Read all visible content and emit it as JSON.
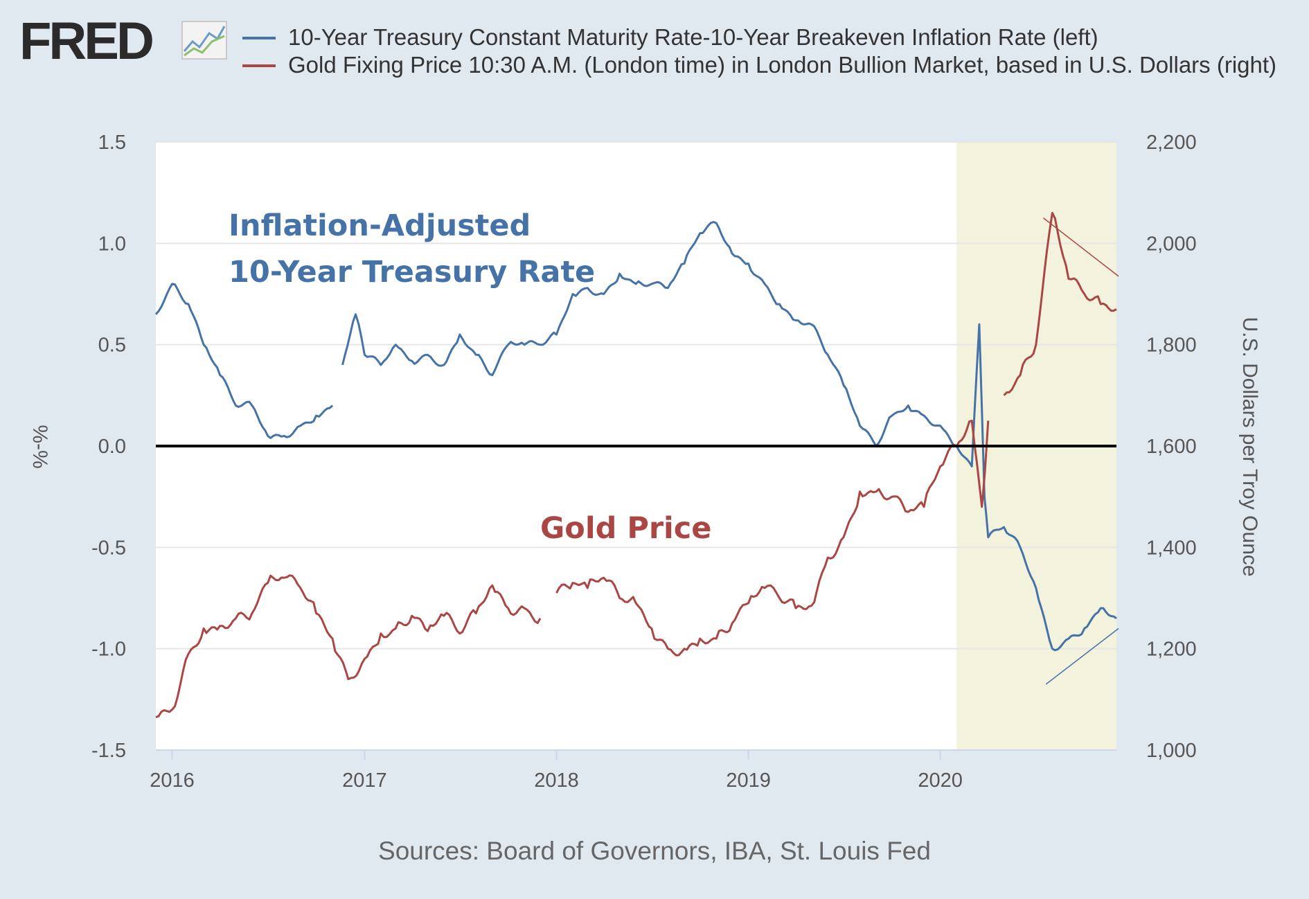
{
  "header": {
    "logo_text": "FRED",
    "logo_icon": "line-chart-icon"
  },
  "legend": [
    {
      "label": "10-Year Treasury Constant Maturity Rate-10-Year Breakeven Inflation Rate (left)",
      "color": "#4572a7"
    },
    {
      "label": "Gold Fixing Price 10:30 A.M. (London time) in London Bullion Market, based in U.S. Dollars (right)",
      "color": "#aa4643"
    }
  ],
  "source": "Sources: Board of Governors, IBA, St. Louis Fed",
  "chart_data": {
    "type": "line",
    "title": "",
    "x_ticks": [
      "2016",
      "2017",
      "2018",
      "2019",
      "2020"
    ],
    "x_range": [
      "2015-12-01",
      "2020-12-01"
    ],
    "y_left": {
      "label": "%-%",
      "range": [
        -1.5,
        1.5
      ],
      "ticks": [
        "1.5",
        "1.0",
        "0.5",
        "0.0",
        "-0.5",
        "-1.0",
        "-1.5"
      ]
    },
    "y_right": {
      "label": "U.S. Dollars per Troy Ounce",
      "range": [
        1000,
        2200
      ],
      "ticks": [
        "2,200",
        "2,000",
        "1,800",
        "1,600",
        "1,400",
        "1,200",
        "1,000"
      ]
    },
    "recession_shading": [
      "2020-02-01",
      "2020-12-01"
    ],
    "reference_line": {
      "y": 0.0,
      "color": "#000000"
    },
    "annotations": [
      {
        "text": "Inflation-Adjusted",
        "color": "#4572a7"
      },
      {
        "text": "10-Year Treasury Rate",
        "color": "#4572a7"
      },
      {
        "text": "Gold Price",
        "color": "#aa4643"
      }
    ],
    "series": [
      {
        "name": "10-Year Treasury Constant Maturity Rate-10-Year Breakeven Inflation Rate (left)",
        "axis": "left",
        "color": "#4572a7",
        "points": [
          [
            "2015-12-01",
            0.65
          ],
          [
            "2016-01-01",
            0.8
          ],
          [
            "2016-02-01",
            0.7
          ],
          [
            "2016-03-01",
            0.5
          ],
          [
            "2016-04-01",
            0.35
          ],
          [
            "2016-05-01",
            0.2
          ],
          [
            "2016-06-01",
            0.2
          ],
          [
            "2016-07-01",
            0.05
          ],
          [
            "2016-08-01",
            0.05
          ],
          [
            "2016-09-01",
            0.1
          ],
          [
            "2016-10-01",
            0.15
          ],
          [
            "2016-11-01",
            0.2
          ],
          [
            null,
            null
          ],
          [
            "2016-11-20",
            0.4
          ],
          [
            "2016-12-15",
            0.65
          ],
          [
            "2017-01-01",
            0.45
          ],
          [
            "2017-02-01",
            0.4
          ],
          [
            "2017-03-01",
            0.5
          ],
          [
            "2017-04-01",
            0.42
          ],
          [
            "2017-05-01",
            0.45
          ],
          [
            "2017-06-01",
            0.4
          ],
          [
            "2017-07-01",
            0.55
          ],
          [
            "2017-08-01",
            0.45
          ],
          [
            "2017-09-01",
            0.35
          ],
          [
            "2017-10-01",
            0.5
          ],
          [
            "2017-11-01",
            0.5
          ],
          [
            "2017-12-01",
            0.5
          ],
          [
            "2018-01-01",
            0.55
          ],
          [
            "2018-02-01",
            0.75
          ],
          [
            "2018-03-01",
            0.78
          ],
          [
            "2018-04-01",
            0.75
          ],
          [
            "2018-05-01",
            0.85
          ],
          [
            "2018-06-01",
            0.8
          ],
          [
            "2018-07-01",
            0.8
          ],
          [
            "2018-08-01",
            0.78
          ],
          [
            "2018-09-01",
            0.9
          ],
          [
            "2018-10-01",
            1.05
          ],
          [
            "2018-11-01",
            1.1
          ],
          [
            "2018-12-01",
            0.95
          ],
          [
            "2019-01-01",
            0.9
          ],
          [
            "2019-02-01",
            0.8
          ],
          [
            "2019-03-01",
            0.7
          ],
          [
            "2019-04-01",
            0.62
          ],
          [
            "2019-05-01",
            0.6
          ],
          [
            "2019-06-01",
            0.45
          ],
          [
            "2019-07-01",
            0.3
          ],
          [
            "2019-08-01",
            0.1
          ],
          [
            "2019-09-01",
            0.0
          ],
          [
            "2019-10-01",
            0.15
          ],
          [
            "2019-11-01",
            0.2
          ],
          [
            "2019-12-01",
            0.15
          ],
          [
            "2020-01-01",
            0.1
          ],
          [
            "2020-02-01",
            0.0
          ],
          [
            "2020-03-01",
            -0.1
          ],
          [
            "2020-03-15",
            0.6
          ],
          [
            "2020-03-25",
            -0.25
          ],
          [
            "2020-04-01",
            -0.45
          ],
          [
            "2020-05-01",
            -0.4
          ],
          [
            "2020-06-01",
            -0.5
          ],
          [
            "2020-07-01",
            -0.7
          ],
          [
            "2020-08-01",
            -1.0
          ],
          [
            "2020-09-01",
            -0.95
          ],
          [
            "2020-10-01",
            -0.9
          ],
          [
            "2020-11-01",
            -0.8
          ],
          [
            "2020-12-01",
            -0.85
          ]
        ]
      },
      {
        "name": "Gold Fixing Price 10:30 A.M. (London time) in London Bullion Market, based in U.S. Dollars (right)",
        "axis": "right",
        "color": "#aa4643",
        "points": [
          [
            "2015-12-01",
            1065
          ],
          [
            "2016-01-01",
            1080
          ],
          [
            "2016-02-01",
            1190
          ],
          [
            "2016-03-01",
            1240
          ],
          [
            "2016-04-01",
            1245
          ],
          [
            "2016-05-01",
            1260
          ],
          [
            "2016-06-01",
            1270
          ],
          [
            "2016-07-01",
            1330
          ],
          [
            "2016-08-01",
            1340
          ],
          [
            "2016-09-01",
            1320
          ],
          [
            "2016-10-01",
            1270
          ],
          [
            "2016-11-01",
            1220
          ],
          [
            "2016-12-01",
            1140
          ],
          [
            "2017-01-01",
            1180
          ],
          [
            "2017-02-01",
            1230
          ],
          [
            "2017-03-01",
            1240
          ],
          [
            "2017-04-01",
            1265
          ],
          [
            "2017-05-01",
            1235
          ],
          [
            "2017-06-01",
            1265
          ],
          [
            "2017-07-01",
            1230
          ],
          [
            "2017-08-01",
            1270
          ],
          [
            "2017-09-01",
            1325
          ],
          [
            "2017-10-01",
            1280
          ],
          [
            "2017-11-01",
            1280
          ],
          [
            "2017-12-01",
            1260
          ],
          [
            null,
            null
          ],
          [
            "2018-01-01",
            1310
          ],
          [
            "2018-02-01",
            1330
          ],
          [
            "2018-03-01",
            1320
          ],
          [
            "2018-04-01",
            1340
          ],
          [
            "2018-05-01",
            1300
          ],
          [
            "2018-06-01",
            1290
          ],
          [
            "2018-07-01",
            1240
          ],
          [
            "2018-08-01",
            1200
          ],
          [
            "2018-09-01",
            1200
          ],
          [
            "2018-10-01",
            1220
          ],
          [
            "2018-11-01",
            1220
          ],
          [
            "2018-12-01",
            1250
          ],
          [
            "2019-01-01",
            1290
          ],
          [
            "2019-02-01",
            1320
          ],
          [
            "2019-03-01",
            1300
          ],
          [
            "2019-04-01",
            1280
          ],
          [
            "2019-05-01",
            1285
          ],
          [
            "2019-06-01",
            1380
          ],
          [
            "2019-07-01",
            1420
          ],
          [
            "2019-08-01",
            1510
          ],
          [
            "2019-09-01",
            1510
          ],
          [
            "2019-10-01",
            1500
          ],
          [
            "2019-11-01",
            1470
          ],
          [
            "2019-12-01",
            1480
          ],
          [
            "2020-01-01",
            1560
          ],
          [
            "2020-02-01",
            1600
          ],
          [
            "2020-03-01",
            1650
          ],
          [
            "2020-03-20",
            1480
          ],
          [
            "2020-04-01",
            1650
          ],
          [
            null,
            null
          ],
          [
            "2020-05-01",
            1700
          ],
          [
            "2020-06-01",
            1740
          ],
          [
            "2020-07-01",
            1800
          ],
          [
            "2020-08-01",
            2060
          ],
          [
            "2020-09-01",
            1930
          ],
          [
            "2020-10-01",
            1900
          ],
          [
            "2020-11-01",
            1880
          ],
          [
            "2020-12-01",
            1870
          ]
        ]
      }
    ],
    "trend_lines": [
      {
        "color": "#aa4643",
        "from": [
          "2020-07-15",
          2050
        ],
        "to": [
          "2020-12-05",
          1935
        ]
      },
      {
        "color": "#4572a7",
        "from": [
          "2020-07-20",
          1130
        ],
        "to": [
          "2020-12-05",
          1240
        ]
      }
    ]
  }
}
